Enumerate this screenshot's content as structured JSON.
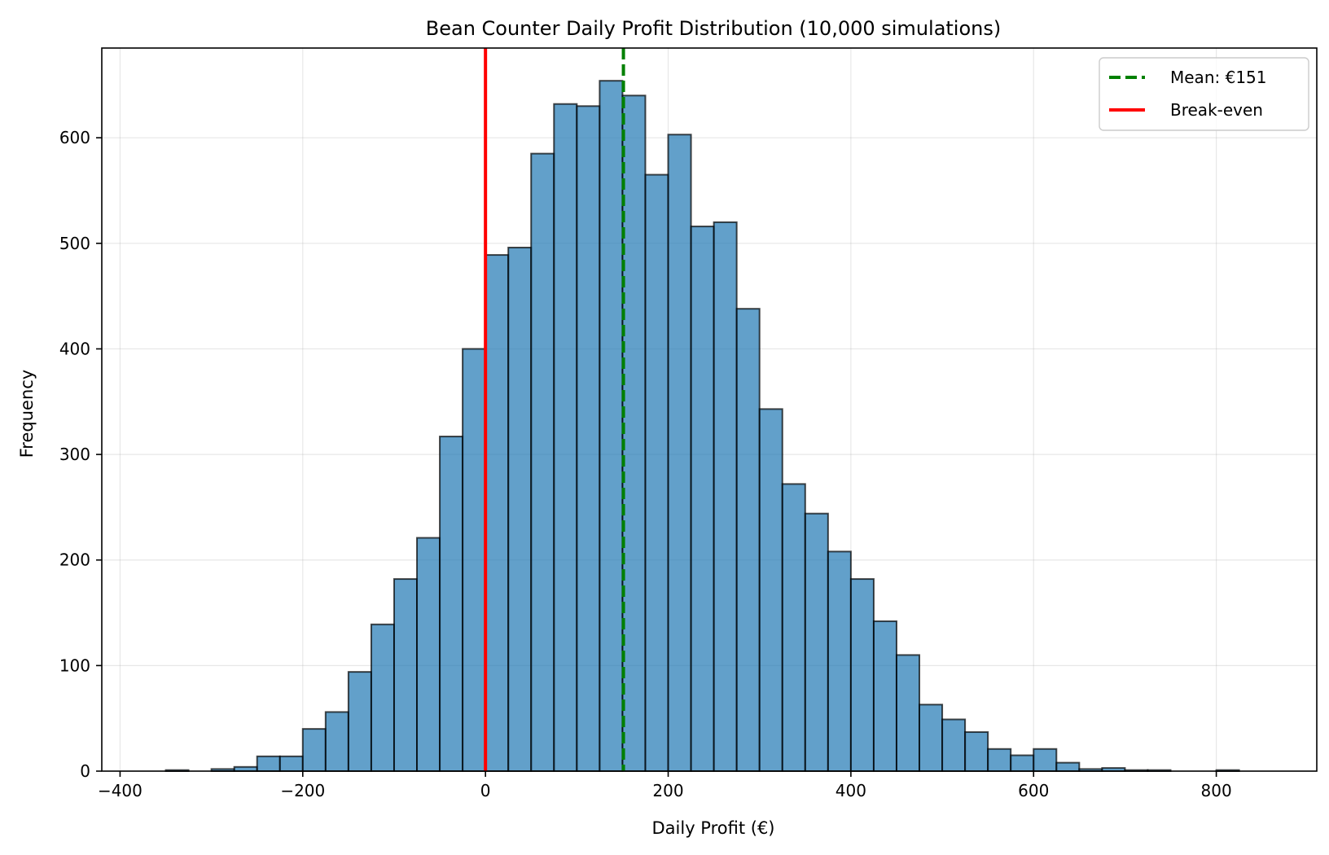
{
  "chart_data": {
    "type": "bar",
    "subtype": "histogram",
    "title": "Bean Counter Daily Profit Distribution (10,000 simulations)",
    "xlabel": "Daily Profit (€)",
    "ylabel": "Frequency",
    "xlim": [
      -420,
      910
    ],
    "ylim": [
      0,
      685
    ],
    "xticks": [
      -400,
      -200,
      0,
      200,
      400,
      600,
      800
    ],
    "xtick_labels": [
      "−400",
      "−200",
      "0",
      "200",
      "400",
      "600",
      "800"
    ],
    "yticks": [
      0,
      100,
      200,
      300,
      400,
      500,
      600
    ],
    "yticks_labels": [
      "0",
      "100",
      "200",
      "300",
      "400",
      "500",
      "600"
    ],
    "grid": true,
    "bin_edges": [
      -375,
      -350,
      -325,
      -300,
      -275,
      -250,
      -225,
      -200,
      -175,
      -150,
      -125,
      -100,
      -75,
      -50,
      -25,
      0,
      25,
      50,
      75,
      100,
      125,
      150,
      175,
      200,
      225,
      250,
      275,
      300,
      325,
      350,
      375,
      400,
      425,
      450,
      475,
      500,
      525,
      550,
      575,
      600,
      625,
      650,
      675,
      700,
      725,
      750,
      775,
      800,
      825,
      850
    ],
    "counts": [
      0,
      1,
      0,
      2,
      4,
      14,
      14,
      40,
      56,
      94,
      139,
      182,
      221,
      317,
      400,
      489,
      496,
      585,
      632,
      630,
      654,
      640,
      565,
      603,
      516,
      520,
      438,
      343,
      272,
      244,
      208,
      182,
      142,
      110,
      63,
      49,
      37,
      21,
      15,
      21,
      8,
      2,
      3,
      1,
      1,
      0,
      0,
      1,
      0
    ],
    "bar_color": "#1f77b4",
    "bar_edge_color": "#000000",
    "vlines": [
      {
        "name": "Mean: €151",
        "x": 151,
        "color": "#008000",
        "style": "dashed"
      },
      {
        "name": "Break-even",
        "x": 0,
        "color": "#ff0000",
        "style": "solid"
      }
    ],
    "legend_position": "top-right"
  }
}
